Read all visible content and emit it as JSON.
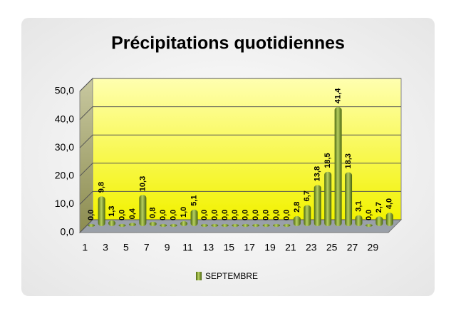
{
  "chart_data": {
    "type": "bar",
    "title": "Précipitations quotidiennes",
    "categories": [
      1,
      null,
      3,
      null,
      5,
      null,
      7,
      null,
      9,
      null,
      11,
      null,
      13,
      null,
      15,
      null,
      17,
      null,
      19,
      null,
      21,
      null,
      23,
      null,
      25,
      null,
      27,
      null,
      29,
      null
    ],
    "series": [
      {
        "name": "SEPTEMBRE",
        "color": "#6b8e23",
        "values": [
          0.0,
          9.8,
          1.3,
          0.0,
          0.4,
          10.3,
          0.8,
          0.0,
          0.0,
          1.0,
          5.1,
          0.0,
          0.0,
          0.0,
          0.0,
          0.0,
          0.0,
          0.0,
          0.0,
          0.0,
          2.8,
          6.7,
          13.8,
          18.5,
          41.4,
          18.3,
          3.1,
          0.0,
          2.7,
          4.0
        ],
        "value_labels": [
          "0,0",
          "9,8",
          "1,3",
          "0,0",
          "0,4",
          "10,3",
          "0,8",
          "0,0",
          "0,0",
          "1,0",
          "5,1",
          "0,0",
          "0,0",
          "0,0",
          "0,0",
          "0,0",
          "0,0",
          "0,0",
          "0,0",
          "0,0",
          "2,8",
          "6,7",
          "13,8",
          "18,5",
          "41,4",
          "18,3",
          "3,1",
          "0,0",
          "2,7",
          "4,0"
        ]
      }
    ],
    "ylim": [
      0,
      50
    ],
    "yticks": [
      {
        "value": 0,
        "label": "0,0"
      },
      {
        "value": 10,
        "label": "10,0"
      },
      {
        "value": 20,
        "label": "20,0"
      },
      {
        "value": 30,
        "label": "30,0"
      },
      {
        "value": 40,
        "label": "40,0"
      },
      {
        "value": 50,
        "label": "50,0"
      }
    ],
    "grid": true,
    "legend": "bottom"
  }
}
